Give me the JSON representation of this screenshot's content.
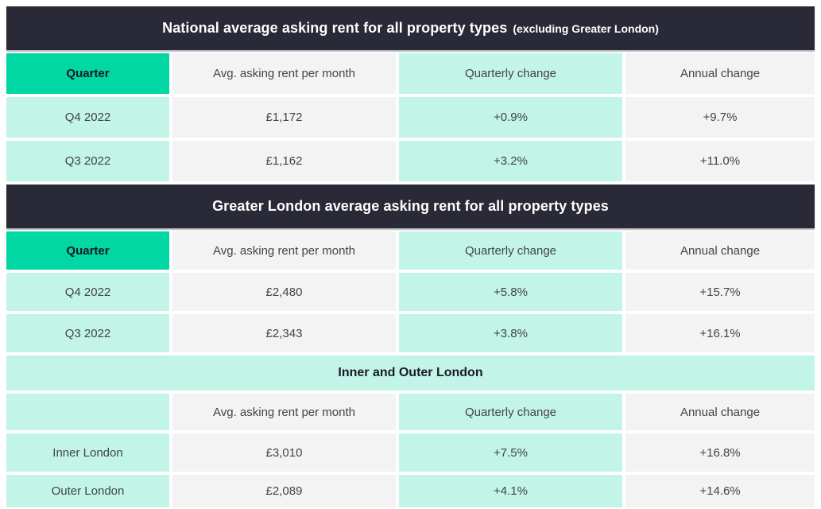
{
  "colors": {
    "title_bar_bg": "#292938",
    "title_bar_text": "#ffffff",
    "accent_header_bg": "#00d7a3",
    "light_teal_bg": "#c2f4e7",
    "light_gray_bg": "#f3f3f3",
    "cell_text": "#43434b"
  },
  "sections": [
    {
      "title": "National average asking rent for all property types",
      "note": "(excluding Greater London)",
      "header": [
        "Quarter",
        "Avg. asking rent per month",
        "Quarterly change",
        "Annual change"
      ],
      "rows": [
        [
          "Q4 2022",
          "£1,172",
          "+0.9%",
          "+9.7%"
        ],
        [
          "Q3 2022",
          "£1,162",
          "+3.2%",
          "+11.0%"
        ]
      ]
    },
    {
      "title": "Greater London average asking rent for all property types",
      "note": "",
      "header": [
        "Quarter",
        "Avg. asking rent per month",
        "Quarterly change",
        "Annual change"
      ],
      "rows": [
        [
          "Q4 2022",
          "£2,480",
          "+5.8%",
          "+15.7%"
        ],
        [
          "Q3 2022",
          "£2,343",
          "+3.8%",
          "+16.1%"
        ]
      ]
    }
  ],
  "inner_outer": {
    "banner": "Inner and Outer London",
    "header": [
      "",
      "Avg. asking rent per month",
      "Quarterly change",
      "Annual change"
    ],
    "rows": [
      [
        "Inner London",
        "£3,010",
        "+7.5%",
        "+16.8%"
      ],
      [
        "Outer London",
        "£2,089",
        "+4.1%",
        "+14.6%"
      ]
    ]
  },
  "chart_data": [
    {
      "type": "table",
      "title": "National average asking rent for all property types (excluding Greater London)",
      "columns": [
        "Quarter",
        "Avg. asking rent per month",
        "Quarterly change",
        "Annual change"
      ],
      "rows": [
        [
          "Q4 2022",
          "£1,172",
          "+0.9%",
          "+9.7%"
        ],
        [
          "Q3 2022",
          "£1,162",
          "+3.2%",
          "+11.0%"
        ]
      ]
    },
    {
      "type": "table",
      "title": "Greater London average asking rent for all property types",
      "columns": [
        "Quarter",
        "Avg. asking rent per month",
        "Quarterly change",
        "Annual change"
      ],
      "rows": [
        [
          "Q4 2022",
          "£2,480",
          "+5.8%",
          "+15.7%"
        ],
        [
          "Q3 2022",
          "£2,343",
          "+3.8%",
          "+16.1%"
        ]
      ]
    },
    {
      "type": "table",
      "title": "Inner and Outer London",
      "columns": [
        "",
        "Avg. asking rent per month",
        "Quarterly change",
        "Annual change"
      ],
      "rows": [
        [
          "Inner London",
          "£3,010",
          "+7.5%",
          "+16.8%"
        ],
        [
          "Outer London",
          "£2,089",
          "+4.1%",
          "+14.6%"
        ]
      ]
    }
  ]
}
